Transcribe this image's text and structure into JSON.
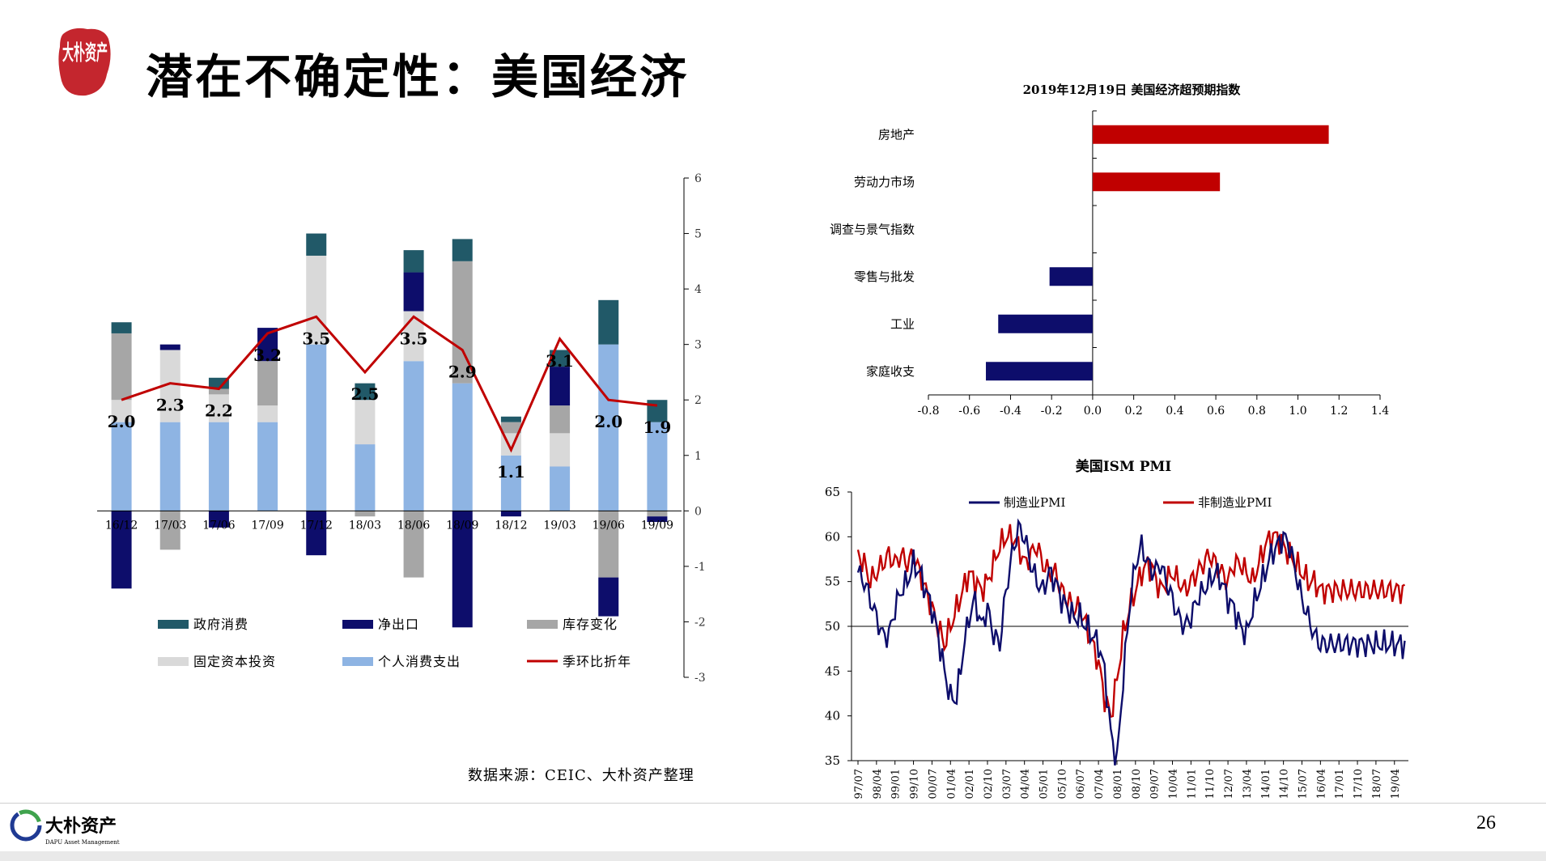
{
  "slide": {
    "title": "潜在不确定性：美国经济",
    "page_number": "26",
    "source_note": "数据来源：CEIC、大朴资产整理",
    "logo_seal_text": "大朴资产",
    "footer_logo_text": "大朴资产",
    "footer_logo_subtext": "DAPU Asset Management",
    "colors": {
      "seal_red": "#c4262e",
      "footer_blue": "#1f3a93",
      "footer_green": "#3fa34d"
    }
  },
  "chart_data": [
    {
      "id": "gdp-contribution",
      "type": "bar",
      "stacked": true,
      "categories": [
        "16/12",
        "17/03",
        "17/06",
        "17/09",
        "17/12",
        "18/03",
        "18/06",
        "18/09",
        "18/12",
        "19/03",
        "19/06",
        "19/09"
      ],
      "series": [
        {
          "name": "个人消费支出",
          "color": "#8eb4e3",
          "values": [
            1.6,
            1.6,
            1.6,
            1.6,
            3.0,
            1.2,
            2.7,
            2.3,
            1.0,
            0.8,
            3.0,
            1.6
          ]
        },
        {
          "name": "固定资本投资",
          "color": "#d9d9d9",
          "values": [
            0.4,
            1.3,
            0.5,
            0.3,
            1.6,
            0.8,
            0.9,
            0.0,
            0.4,
            0.6,
            0.0,
            0.0
          ]
        },
        {
          "name": "库存变化",
          "color": "#a6a6a6",
          "values": [
            1.2,
            -0.7,
            0.1,
            0.8,
            0.0,
            -0.1,
            -1.2,
            2.2,
            0.2,
            0.5,
            -1.2,
            -0.1
          ]
        },
        {
          "name": "净出口",
          "color": "#0d0d6b",
          "values": [
            -1.4,
            0.1,
            -0.3,
            0.6,
            -0.8,
            0.0,
            0.7,
            -2.1,
            -0.1,
            0.7,
            -0.7,
            -0.1
          ]
        },
        {
          "name": "政府消费",
          "color": "#215968",
          "values": [
            0.2,
            0.0,
            0.2,
            0.0,
            0.4,
            0.3,
            0.4,
            0.4,
            0.1,
            0.3,
            0.8,
            0.4
          ]
        }
      ],
      "line": {
        "name": "季环比折年",
        "color": "#c00000",
        "values": [
          2.0,
          2.3,
          2.2,
          3.2,
          3.5,
          2.5,
          3.5,
          2.9,
          1.1,
          3.1,
          2.0,
          1.9
        ],
        "labels": [
          "2.0",
          "2.3",
          "2.2",
          "3.2",
          "3.5",
          "2.5",
          "3.5",
          "2.9",
          "1.1",
          "3.1",
          "2.0",
          "1.9"
        ]
      },
      "ylim": [
        -3,
        6
      ],
      "yticks": [
        "-3",
        "-2",
        "-1",
        "0",
        "1",
        "2",
        "3",
        "4",
        "5",
        "6"
      ],
      "legend": [
        "政府消费",
        "净出口",
        "库存变化",
        "固定资本投资",
        "个人消费支出",
        "季环比折年"
      ],
      "legend_position": "bottom"
    },
    {
      "id": "surprise-index",
      "type": "bar",
      "orientation": "horizontal",
      "title": "2019年12月19日 美国经济超预期指数",
      "categories": [
        "房地产",
        "劳动力市场",
        "调查与景气指数",
        "零售与批发",
        "工业",
        "家庭收支"
      ],
      "values": [
        1.15,
        0.62,
        0.0,
        -0.21,
        -0.46,
        -0.52
      ],
      "colors": {
        "positive": "#c00000",
        "negative": "#0d0d6b"
      },
      "xlim": [
        -0.8,
        1.4
      ],
      "xticks": [
        "-0.8",
        "-0.6",
        "-0.4",
        "-0.2",
        "0.0",
        "0.2",
        "0.4",
        "0.6",
        "0.8",
        "1.0",
        "1.2",
        "1.4"
      ]
    },
    {
      "id": "ism-pmi",
      "type": "line",
      "title": "美国ISM PMI",
      "ylim": [
        35,
        65
      ],
      "yticks": [
        "35",
        "40",
        "45",
        "50",
        "55",
        "60",
        "65"
      ],
      "xticks": [
        "97/07",
        "98/04",
        "99/01",
        "99/10",
        "00/07",
        "01/04",
        "02/01",
        "02/10",
        "03/07",
        "04/04",
        "05/01",
        "05/10",
        "06/07",
        "07/04",
        "08/01",
        "08/10",
        "09/07",
        "10/04",
        "11/01",
        "11/10",
        "12/07",
        "13/04",
        "14/01",
        "14/10",
        "15/07",
        "16/04",
        "17/01",
        "17/10",
        "18/07",
        "19/04"
      ],
      "x_start": "1997-07",
      "reference_line": 50,
      "series": [
        {
          "name": "制造业PMI",
          "color": "#0d0d6b",
          "anchors": [
            [
              0,
              56
            ],
            [
              3,
              55
            ],
            [
              6,
              53
            ],
            [
              9,
              51
            ],
            [
              12,
              49
            ],
            [
              15,
              49
            ],
            [
              18,
              52
            ],
            [
              21,
              54
            ],
            [
              24,
              55
            ],
            [
              27,
              57
            ],
            [
              30,
              56
            ],
            [
              33,
              54
            ],
            [
              36,
              52
            ],
            [
              39,
              49
            ],
            [
              42,
              45
            ],
            [
              45,
              42
            ],
            [
              48,
              42
            ],
            [
              51,
              47
            ],
            [
              54,
              51
            ],
            [
              57,
              53
            ],
            [
              60,
              50
            ],
            [
              63,
              52
            ],
            [
              66,
              49
            ],
            [
              69,
              48
            ],
            [
              72,
              54
            ],
            [
              75,
              58
            ],
            [
              78,
              61
            ],
            [
              81,
              60
            ],
            [
              84,
              57
            ],
            [
              87,
              55
            ],
            [
              90,
              54
            ],
            [
              93,
              56
            ],
            [
              96,
              55
            ],
            [
              99,
              53
            ],
            [
              102,
              52
            ],
            [
              105,
              51
            ],
            [
              108,
              51
            ],
            [
              111,
              50
            ],
            [
              114,
              49
            ],
            [
              117,
              48
            ],
            [
              120,
              45
            ],
            [
              123,
              38
            ],
            [
              126,
              35
            ],
            [
              129,
              44
            ],
            [
              132,
              52
            ],
            [
              135,
              57
            ],
            [
              138,
              59
            ],
            [
              141,
              57
            ],
            [
              144,
              56
            ],
            [
              147,
              57
            ],
            [
              150,
              55
            ],
            [
              153,
              53
            ],
            [
              156,
              51
            ],
            [
              159,
              50
            ],
            [
              162,
              51
            ],
            [
              165,
              53
            ],
            [
              168,
              54
            ],
            [
              171,
              55
            ],
            [
              174,
              56
            ],
            [
              177,
              55
            ],
            [
              180,
              53
            ],
            [
              183,
              52
            ],
            [
              186,
              50
            ],
            [
              189,
              49
            ],
            [
              192,
              52
            ],
            [
              195,
              54
            ],
            [
              198,
              56
            ],
            [
              201,
              58
            ],
            [
              204,
              59
            ],
            [
              207,
              60
            ],
            [
              210,
              59
            ],
            [
              213,
              56
            ],
            [
              216,
              53
            ],
            [
              219,
              51
            ],
            [
              222,
              49
            ],
            [
              225,
              48
            ]
          ]
        },
        {
          "name": "非制造业PMI",
          "color": "#c00000",
          "anchors": [
            [
              0,
              58
            ],
            [
              3,
              57
            ],
            [
              6,
              55
            ],
            [
              9,
              56
            ],
            [
              12,
              57
            ],
            [
              15,
              58
            ],
            [
              18,
              57
            ],
            [
              21,
              58
            ],
            [
              24,
              57
            ],
            [
              27,
              58
            ],
            [
              30,
              56
            ],
            [
              33,
              54
            ],
            [
              36,
              52
            ],
            [
              39,
              50
            ],
            [
              42,
              48
            ],
            [
              45,
              50
            ],
            [
              48,
              52
            ],
            [
              51,
              54
            ],
            [
              54,
              56
            ],
            [
              57,
              55
            ],
            [
              60,
              54
            ],
            [
              63,
              55
            ],
            [
              66,
              57
            ],
            [
              69,
              59
            ],
            [
              72,
              60
            ],
            [
              75,
              60
            ],
            [
              78,
              59
            ],
            [
              81,
              57
            ],
            [
              84,
              58
            ],
            [
              87,
              59
            ],
            [
              90,
              57
            ],
            [
              93,
              56
            ],
            [
              96,
              56
            ],
            [
              99,
              54
            ],
            [
              102,
              53
            ],
            [
              105,
              52
            ],
            [
              108,
              52
            ],
            [
              111,
              50
            ],
            [
              114,
              48
            ],
            [
              117,
              46
            ],
            [
              120,
              42
            ],
            [
              123,
              40
            ],
            [
              126,
              44
            ],
            [
              129,
              49
            ],
            [
              132,
              52
            ],
            [
              135,
              54
            ],
            [
              138,
              56
            ],
            [
              141,
              57
            ],
            [
              144,
              56
            ],
            [
              147,
              54
            ],
            [
              150,
              55
            ],
            [
              153,
              56
            ],
            [
              156,
              55
            ],
            [
              159,
              54
            ],
            [
              162,
              55
            ],
            [
              165,
              56
            ],
            [
              168,
              57
            ],
            [
              171,
              58
            ],
            [
              174,
              57
            ],
            [
              177,
              56
            ],
            [
              180,
              55
            ],
            [
              183,
              57
            ],
            [
              186,
              57
            ],
            [
              189,
              56
            ],
            [
              192,
              55
            ],
            [
              195,
              57
            ],
            [
              198,
              59
            ],
            [
              201,
              60
            ],
            [
              204,
              60
            ],
            [
              207,
              59
            ],
            [
              210,
              58
            ],
            [
              213,
              57
            ],
            [
              216,
              56
            ],
            [
              219,
              55
            ],
            [
              222,
              55
            ],
            [
              225,
              54
            ]
          ]
        }
      ],
      "legend_position": "top"
    }
  ]
}
